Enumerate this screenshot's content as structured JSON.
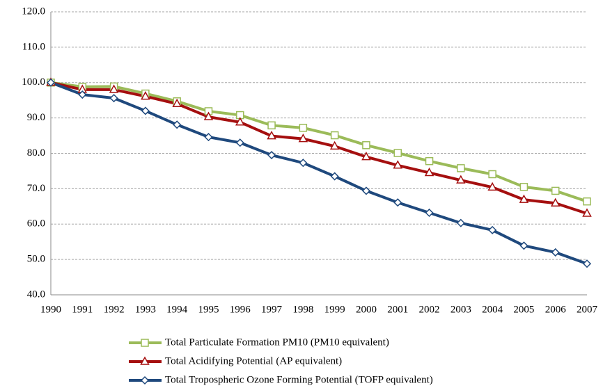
{
  "chart_data": {
    "type": "line",
    "categories": [
      "1990",
      "1991",
      "1992",
      "1993",
      "1994",
      "1995",
      "1996",
      "1997",
      "1998",
      "1999",
      "2000",
      "2001",
      "2002",
      "2003",
      "2004",
      "2005",
      "2006",
      "2007"
    ],
    "series": [
      {
        "name": "Total Particulate Formation PM10 (PM10 equivalent)",
        "color": "#9bbb59",
        "marker": "square",
        "values": [
          100,
          98.8,
          98.9,
          96.9,
          94.7,
          91.9,
          90.8,
          87.9,
          87.2,
          85.1,
          82.3,
          80.1,
          77.8,
          75.8,
          74.1,
          70.5,
          69.4,
          66.4
        ]
      },
      {
        "name": "Total Acidifying Potential (AP equivalent)",
        "color": "#a50f0f",
        "marker": "triangle",
        "values": [
          100,
          98.0,
          98.0,
          96.1,
          94.0,
          90.3,
          88.8,
          84.9,
          84.1,
          82.0,
          79.0,
          76.6,
          74.5,
          72.4,
          70.4,
          66.9,
          65.9,
          63.0
        ]
      },
      {
        "name": "Total Tropospheric Ozone Forming Potential (TOFP equivalent)",
        "color": "#1f497d",
        "marker": "diamond",
        "values": [
          100,
          96.6,
          95.6,
          92.0,
          88.1,
          84.6,
          83.0,
          79.5,
          77.3,
          73.5,
          69.4,
          66.1,
          63.2,
          60.3,
          58.3,
          53.9,
          52.0,
          48.8
        ]
      }
    ],
    "ylim": [
      40,
      120
    ],
    "yticks": [
      {
        "value": 40,
        "label": "40.0"
      },
      {
        "value": 50,
        "label": "50.0"
      },
      {
        "value": 60,
        "label": "60.0"
      },
      {
        "value": 70,
        "label": "70.0"
      },
      {
        "value": 80,
        "label": "80.0"
      },
      {
        "value": 90,
        "label": "90.0"
      },
      {
        "value": 100,
        "label": "100.0"
      },
      {
        "value": 110,
        "label": "110.0"
      },
      {
        "value": 120,
        "label": "120.0"
      }
    ],
    "grid": true,
    "legend": "bottom"
  }
}
